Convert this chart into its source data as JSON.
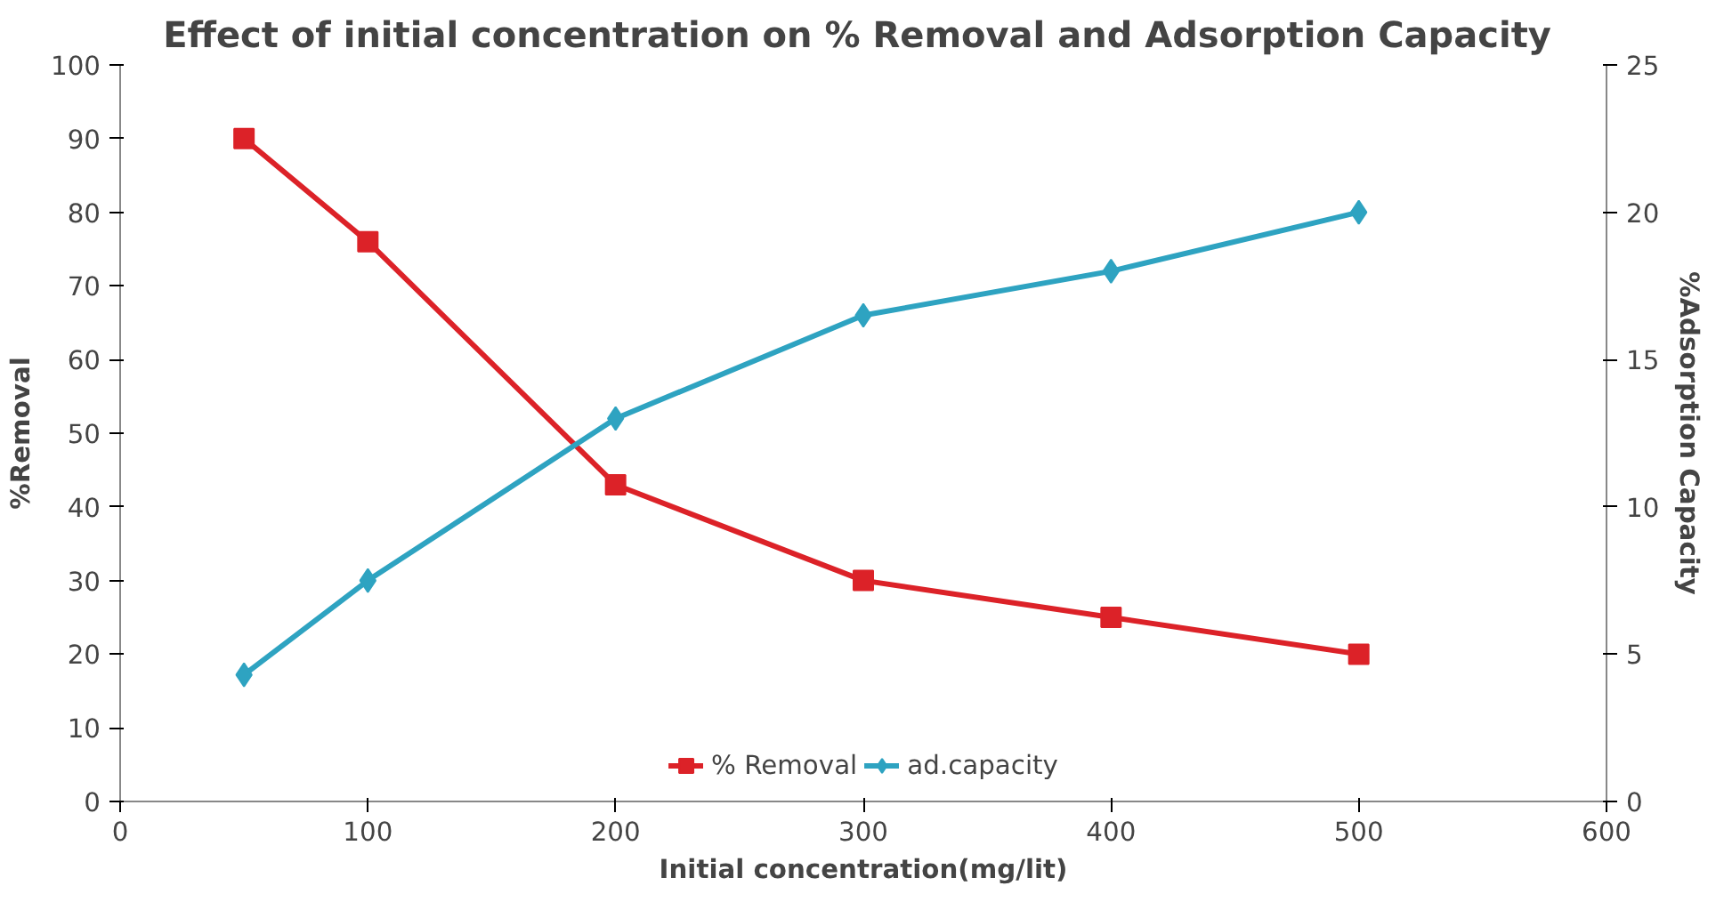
{
  "chart_data": {
    "type": "line",
    "title": "Effect of initial concentration  on % Removal and Adsorption Capacity",
    "xlabel": "Initial concentration(mg/lit)",
    "ylabel": "%Removal",
    "y2label": "%Adsorption Capacity",
    "x": [
      50,
      100,
      200,
      300,
      400,
      500
    ],
    "series": [
      {
        "name": "% Removal",
        "color": "#dc2228",
        "values": [
          90,
          76,
          43,
          30,
          25,
          20
        ],
        "marker": "square"
      },
      {
        "name": "ad.capacity",
        "color": "#2ea3c1",
        "values": [
          4.3,
          7.5,
          13,
          16.5,
          18,
          20
        ],
        "marker": "diamond",
        "axis": "y2"
      }
    ],
    "xlim": [
      0,
      600
    ],
    "xticks": [
      0,
      100,
      200,
      300,
      400,
      500,
      600
    ],
    "ylim": [
      0,
      100
    ],
    "yticks": [
      0,
      10,
      20,
      30,
      40,
      50,
      60,
      70,
      80,
      90,
      100
    ],
    "y2lim": [
      0,
      25
    ],
    "y2ticks": [
      0,
      5,
      10,
      15,
      20,
      25
    ],
    "grid": false,
    "legend": "bottom",
    "line_style": "solid"
  }
}
